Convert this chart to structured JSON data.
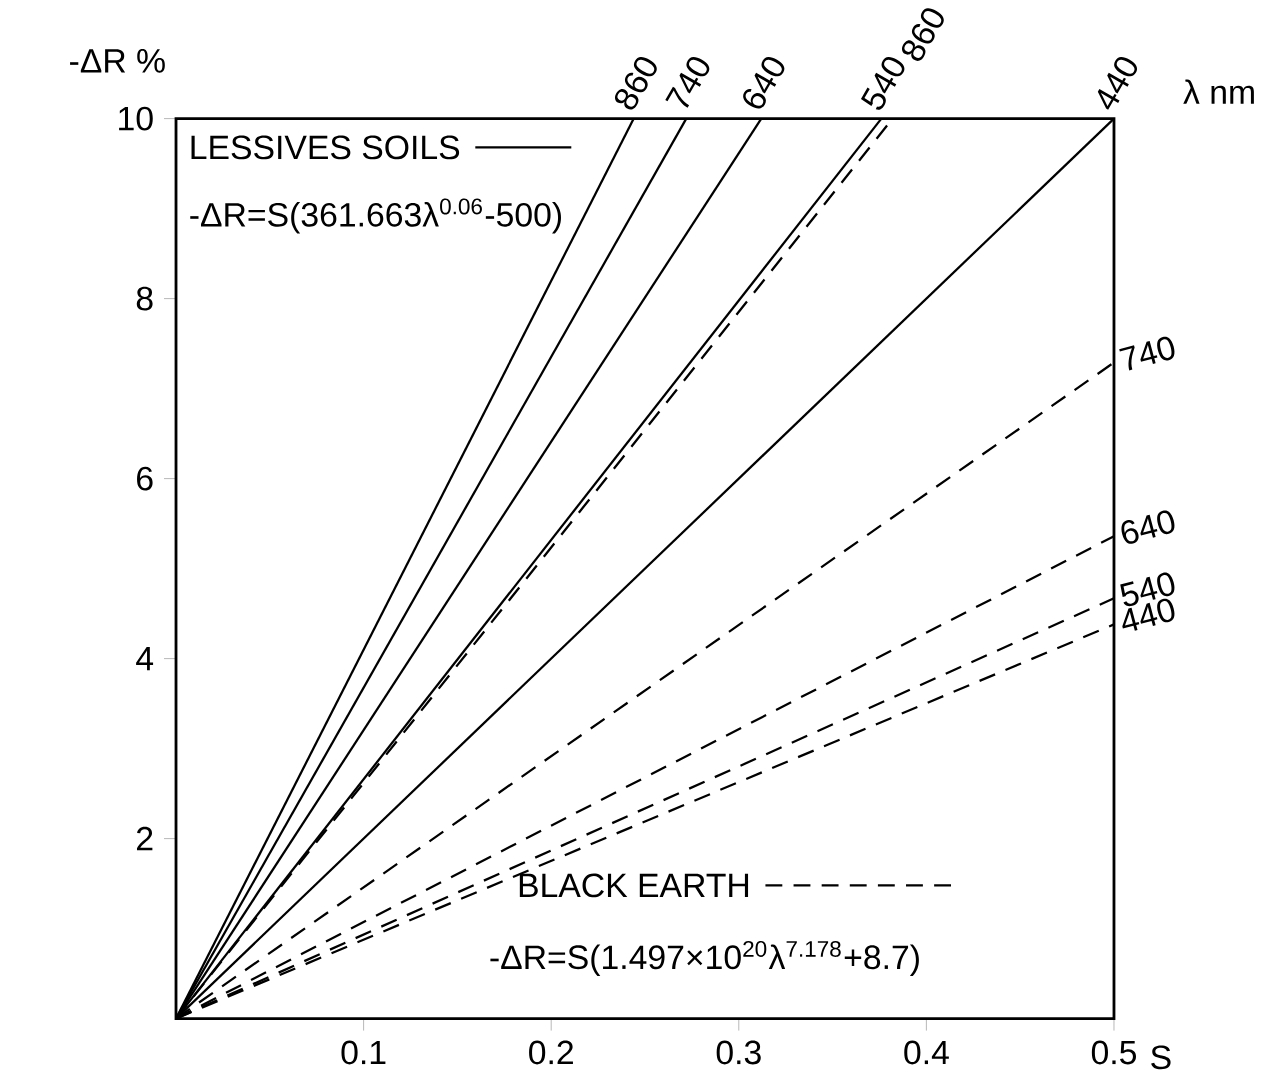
{
  "chart_data": {
    "type": "line",
    "xlabel": "S",
    "ylabel": "-ΔR %",
    "xlim": [
      0,
      0.5
    ],
    "ylim": [
      0,
      10
    ],
    "xticks": [
      0.1,
      0.2,
      0.3,
      0.4,
      0.5
    ],
    "yticks": [
      2,
      4,
      6,
      8,
      10
    ],
    "grid": false,
    "marker": "none",
    "annotations": [
      "LESSIVES SOILS",
      "-ΔR=S(361.663λ$^{0.06}$-500)",
      "BLACK EARTH",
      "-ΔR=S(1.497×10$^{20}$λ$^{7.178}$+8.7)",
      "λ nm"
    ],
    "series": [
      {
        "name": "860",
        "color": "#000000",
        "line_style": "solid",
        "x": [
          0,
          0.244
        ],
        "values": [
          0,
          10
        ]
      },
      {
        "name": "740",
        "color": "#000000",
        "line_style": "solid",
        "x": [
          0,
          0.272
        ],
        "values": [
          0,
          10
        ]
      },
      {
        "name": "640",
        "color": "#000000",
        "line_style": "solid",
        "x": [
          0,
          0.312
        ],
        "values": [
          0,
          10
        ]
      },
      {
        "name": "540",
        "color": "#000000",
        "line_style": "solid",
        "x": [
          0,
          0.376
        ],
        "values": [
          0,
          10
        ]
      },
      {
        "name": "440",
        "color": "#000000",
        "line_style": "solid",
        "x": [
          0,
          0.5
        ],
        "values": [
          0,
          10
        ]
      },
      {
        "name": "860",
        "color": "#000000",
        "line_style": "dashed",
        "x": [
          0,
          0.382
        ],
        "values": [
          0,
          10
        ]
      },
      {
        "name": "740",
        "color": "#000000",
        "line_style": "dashed",
        "x": [
          0,
          0.5
        ],
        "values": [
          0,
          7.29
        ]
      },
      {
        "name": "640",
        "color": "#000000",
        "line_style": "dashed",
        "x": [
          0,
          0.5
        ],
        "values": [
          0,
          5.36
        ]
      },
      {
        "name": "540",
        "color": "#000000",
        "line_style": "dashed",
        "x": [
          0,
          0.5
        ],
        "values": [
          0,
          4.67
        ]
      },
      {
        "name": "440",
        "color": "#000000",
        "line_style": "dashed",
        "x": [
          0,
          0.5
        ],
        "values": [
          0,
          4.38
        ]
      }
    ]
  }
}
